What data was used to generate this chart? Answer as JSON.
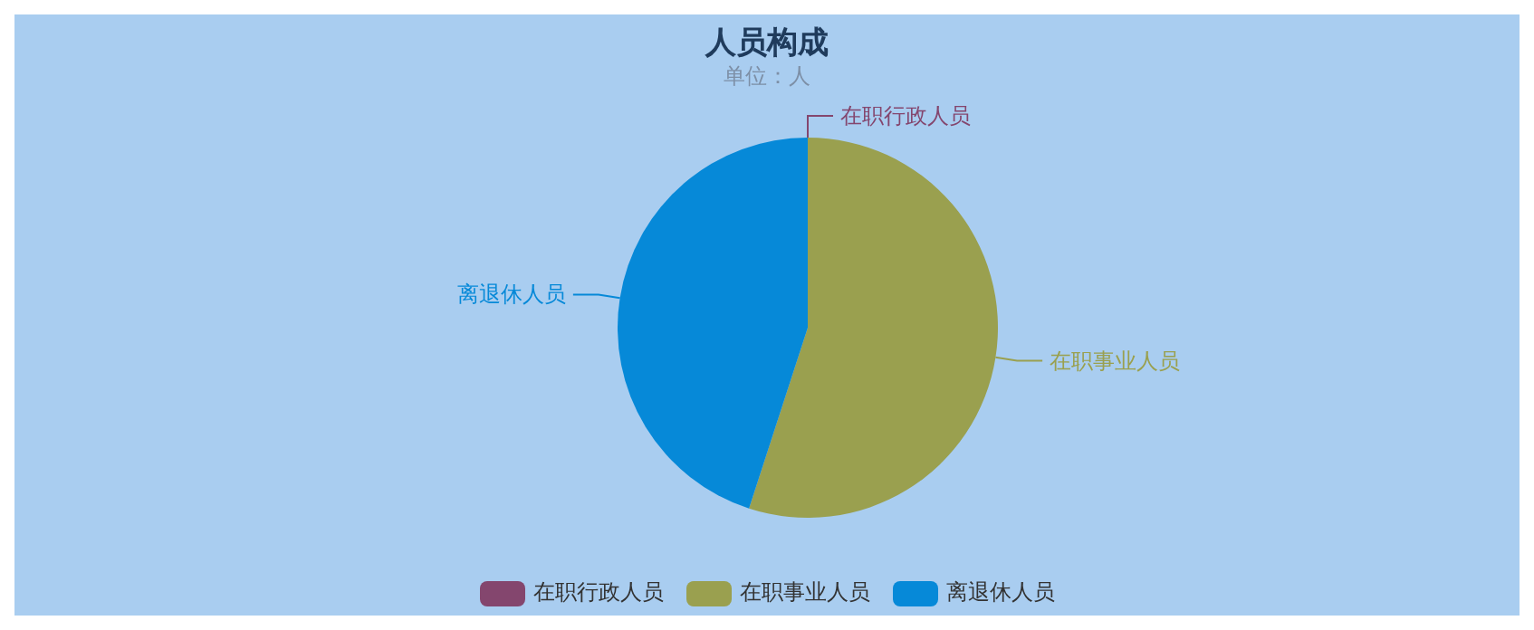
{
  "chart_data": {
    "type": "pie",
    "title": "人员构成",
    "subtitle": "单位：人",
    "categories": [
      "在职行政人员",
      "在职事业人员",
      "离退休人员"
    ],
    "values": [
      0,
      55,
      45
    ],
    "colors": [
      "#84466e",
      "#9aa04f",
      "#0689d8"
    ],
    "legend": "bottom"
  }
}
